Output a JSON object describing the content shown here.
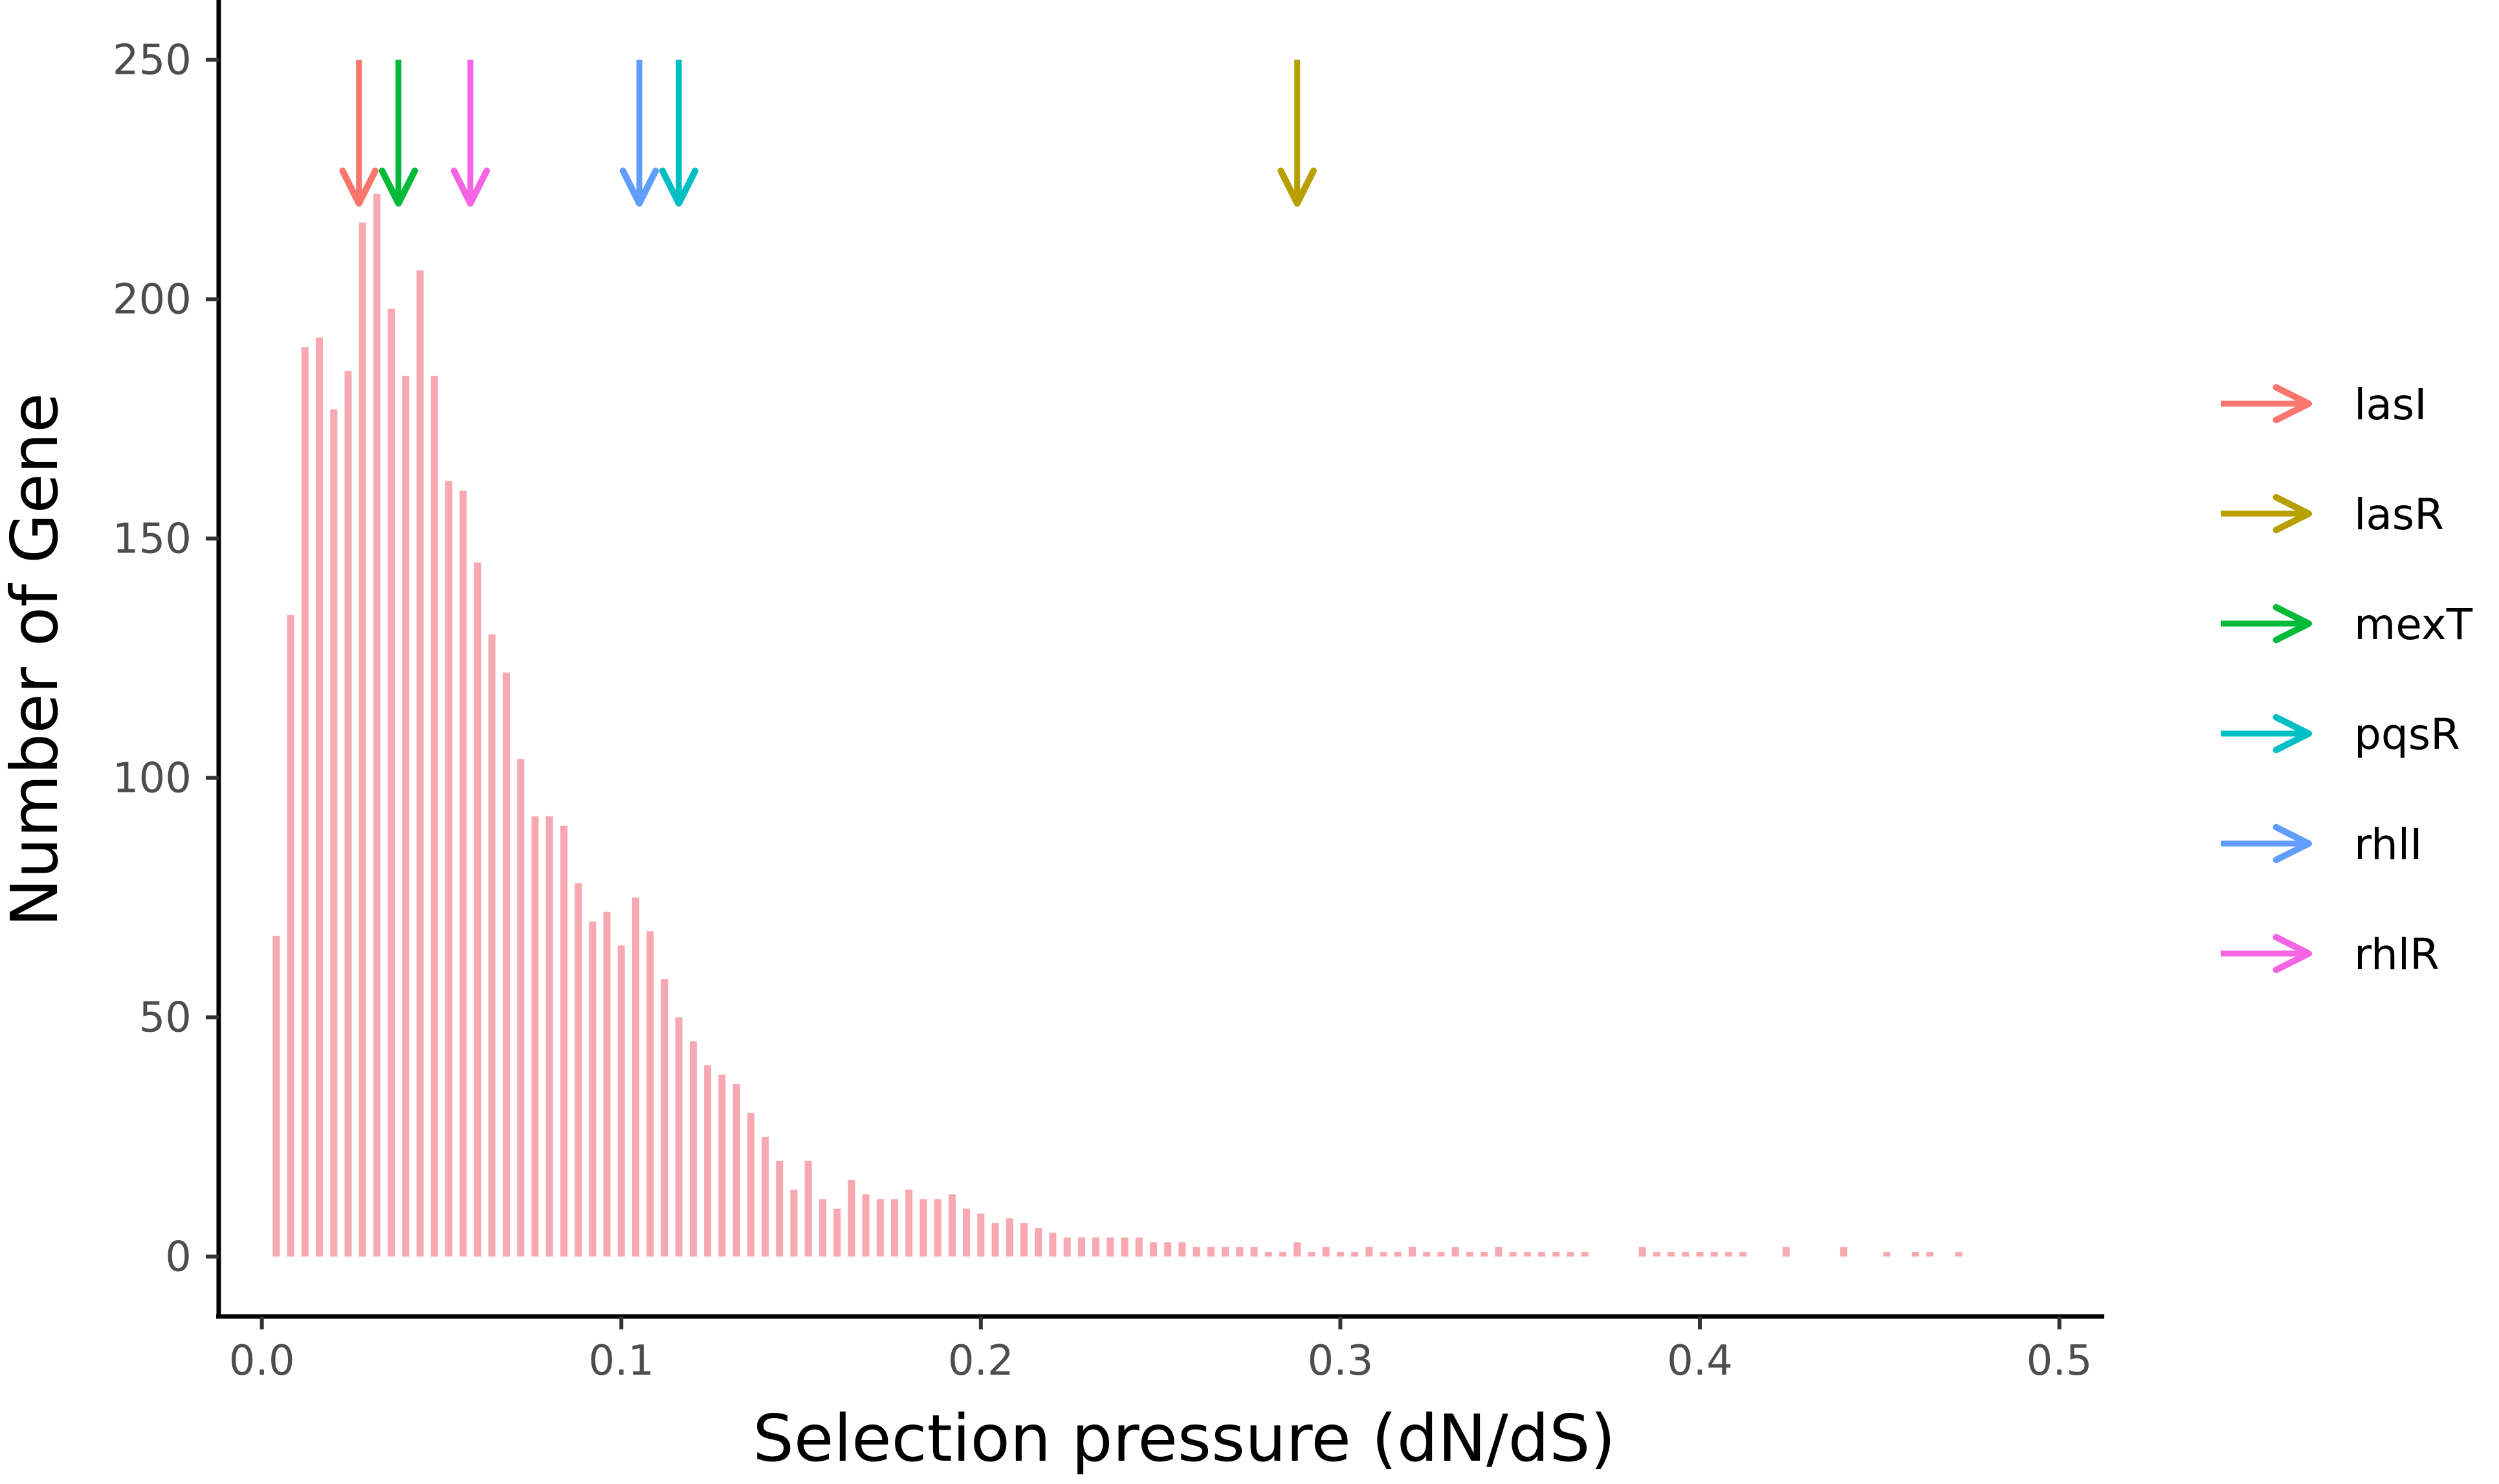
{
  "chart_data": {
    "type": "bar",
    "title": "",
    "xlabel": "Selection pressure (dN/dS)",
    "ylabel": "Number of Gene",
    "xlim": [
      -0.012,
      0.5125
    ],
    "ylim": [
      -12.5,
      262.5
    ],
    "x_ticks": [
      0.0,
      0.1,
      0.2,
      0.3,
      0.4,
      0.5
    ],
    "x_tick_labels": [
      "0.0",
      "0.1",
      "0.2",
      "0.3",
      "0.4",
      "0.5"
    ],
    "y_ticks": [
      0,
      50,
      100,
      150,
      200,
      250
    ],
    "y_tick_labels": [
      "0",
      "50",
      "100",
      "150",
      "200",
      "250"
    ],
    "grid": false,
    "bar_color": "#f8a8b0",
    "bin_width": 0.004,
    "bins": {
      "x": [
        0.004,
        0.008,
        0.012,
        0.016,
        0.02,
        0.024,
        0.028,
        0.032,
        0.036,
        0.04,
        0.044,
        0.048,
        0.052,
        0.056,
        0.06,
        0.064,
        0.068,
        0.072,
        0.076,
        0.08,
        0.084,
        0.088,
        0.092,
        0.096,
        0.1,
        0.104,
        0.108,
        0.112,
        0.116,
        0.12,
        0.124,
        0.128,
        0.132,
        0.136,
        0.14,
        0.144,
        0.148,
        0.152,
        0.156,
        0.16,
        0.164,
        0.168,
        0.172,
        0.176,
        0.18,
        0.184,
        0.188,
        0.192,
        0.196,
        0.2,
        0.204,
        0.208,
        0.212,
        0.216,
        0.22,
        0.224,
        0.228,
        0.232,
        0.236,
        0.24,
        0.244,
        0.248,
        0.252,
        0.256,
        0.26,
        0.264,
        0.268,
        0.272,
        0.276,
        0.28,
        0.284,
        0.288,
        0.292,
        0.296,
        0.3,
        0.304,
        0.308,
        0.312,
        0.316,
        0.32,
        0.324,
        0.328,
        0.332,
        0.336,
        0.34,
        0.344,
        0.348,
        0.352,
        0.356,
        0.36,
        0.364,
        0.368,
        0.384,
        0.388,
        0.392,
        0.396,
        0.4,
        0.404,
        0.408,
        0.412,
        0.424,
        0.44,
        0.452,
        0.46,
        0.464,
        0.472
      ],
      "count": [
        67,
        134,
        190,
        192,
        177,
        185,
        216,
        222,
        198,
        184,
        206,
        184,
        162,
        160,
        145,
        130,
        122,
        104,
        92,
        92,
        90,
        78,
        70,
        72,
        65,
        75,
        68,
        58,
        50,
        45,
        40,
        38,
        36,
        30,
        25,
        20,
        14,
        20,
        12,
        10,
        16,
        13,
        12,
        12,
        14,
        12,
        12,
        13,
        10,
        9,
        7,
        8,
        7,
        6,
        5,
        4,
        4,
        4,
        4,
        4,
        4,
        3,
        3,
        3,
        2,
        2,
        2,
        2,
        2,
        1,
        1,
        3,
        1,
        2,
        1,
        1,
        2,
        1,
        1,
        2,
        1,
        1,
        2,
        1,
        1,
        2,
        1,
        1,
        1,
        1,
        1,
        1,
        2,
        1,
        1,
        1,
        1,
        1,
        1,
        1,
        2,
        2,
        1,
        1,
        1,
        1
      ]
    },
    "annotations": [
      {
        "gene": "lasI",
        "x": 0.027,
        "color": "#f8766d"
      },
      {
        "gene": "lasR",
        "x": 0.288,
        "color": "#b79f00"
      },
      {
        "gene": "mexT",
        "x": 0.038,
        "color": "#00ba38"
      },
      {
        "gene": "pqsR",
        "x": 0.116,
        "color": "#00bfc4"
      },
      {
        "gene": "rhlI",
        "x": 0.105,
        "color": "#619cff"
      },
      {
        "gene": "rhlR",
        "x": 0.058,
        "color": "#f564e3"
      }
    ],
    "arrow_y_range": [
      250,
      220
    ],
    "legend": {
      "position": "right",
      "items": [
        {
          "label": "lasI",
          "color": "#f8766d"
        },
        {
          "label": "lasR",
          "color": "#b79f00"
        },
        {
          "label": "mexT",
          "color": "#00ba38"
        },
        {
          "label": "pqsR",
          "color": "#00bfc4"
        },
        {
          "label": "rhlI",
          "color": "#619cff"
        },
        {
          "label": "rhlR",
          "color": "#f564e3"
        }
      ]
    }
  }
}
